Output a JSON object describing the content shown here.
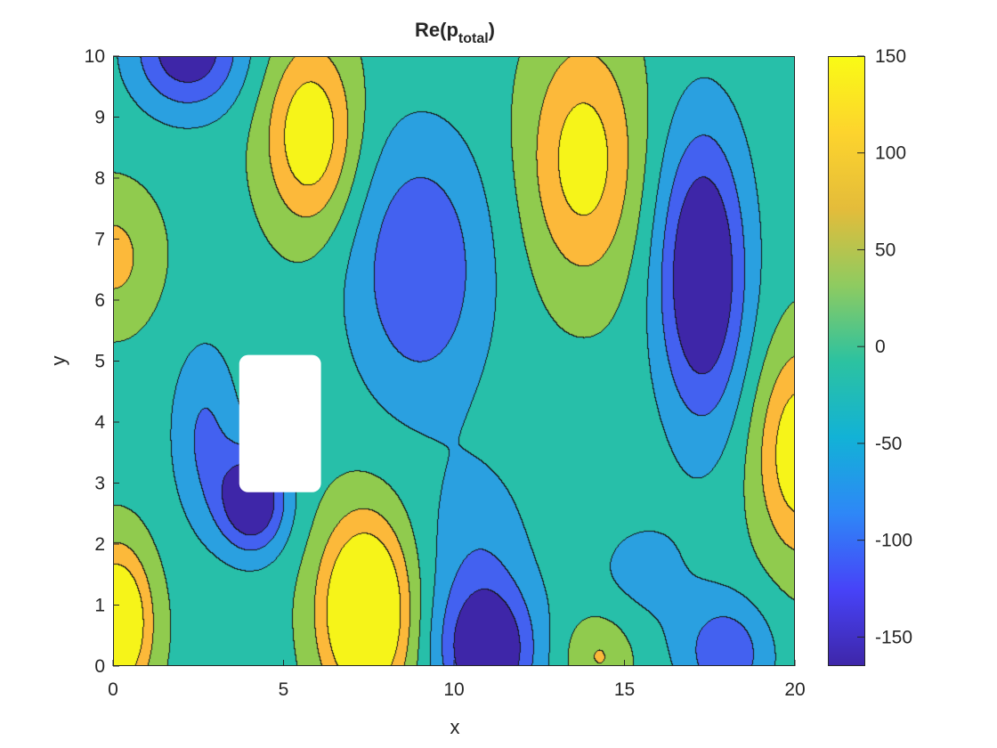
{
  "chart_data": {
    "type": "contour",
    "title_main": "Re(p",
    "title_sub": "total",
    "title_close": ")",
    "xlabel": "x",
    "ylabel": "y",
    "xlim": [
      0,
      20
    ],
    "ylim": [
      0,
      10
    ],
    "xticks": [
      "0",
      "5",
      "10",
      "15",
      "20"
    ],
    "yticks": [
      "0",
      "1",
      "2",
      "3",
      "4",
      "5",
      "6",
      "7",
      "8",
      "9",
      "10"
    ],
    "colorbar": {
      "clim": [
        -165,
        150
      ],
      "ticks": [
        "150",
        "100",
        "50",
        "0",
        "-50",
        "-100",
        "-150"
      ],
      "tick_values": [
        150,
        100,
        50,
        0,
        -50,
        -100,
        -150
      ],
      "colormap": [
        "#3e26a8",
        "#4743f8",
        "#2e87f7",
        "#12b2d6",
        "#2cc2a0",
        "#8fcb60",
        "#e4bc3a",
        "#fdd42d",
        "#f9fb15"
      ]
    },
    "level_colors": [
      "#3e26a8",
      "#4361f0",
      "#2aa0e0",
      "#27bfa9",
      "#90cb4e",
      "#fcb93a",
      "#f6f419"
    ],
    "levels": [
      -165,
      -120,
      -75,
      -30,
      15,
      60,
      105,
      150
    ],
    "obstacle": {
      "x_range": [
        3.7,
        6.1
      ],
      "y_range": [
        2.85,
        5.1
      ],
      "color": "#ffffff"
    },
    "field_sources": [
      {
        "x": 2.2,
        "y": 10.1,
        "amp": -160,
        "sx": 1.6,
        "sy": 1.0
      },
      {
        "x": 5.8,
        "y": 8.7,
        "amp": 150,
        "sx": 1.3,
        "sy": 1.5
      },
      {
        "x": 0.0,
        "y": 6.7,
        "amp": 75,
        "sx": 1.3,
        "sy": 1.1
      },
      {
        "x": 4.1,
        "y": 2.7,
        "amp": -180,
        "sx": 1.0,
        "sy": 0.85
      },
      {
        "x": 7.4,
        "y": 0.9,
        "amp": 220,
        "sx": 1.3,
        "sy": 1.5
      },
      {
        "x": 0.1,
        "y": 0.7,
        "amp": 200,
        "sx": 1.0,
        "sy": 1.2
      },
      {
        "x": 11.0,
        "y": 0.2,
        "amp": -170,
        "sx": 1.4,
        "sy": 1.1
      },
      {
        "x": 9.0,
        "y": 6.5,
        "amp": -120,
        "sx": 2.0,
        "sy": 2.2
      },
      {
        "x": 13.8,
        "y": 8.3,
        "amp": 130,
        "sx": 1.6,
        "sy": 2.0
      },
      {
        "x": 17.3,
        "y": 6.4,
        "amp": -190,
        "sx": 1.3,
        "sy": 2.4
      },
      {
        "x": 20.2,
        "y": 3.5,
        "amp": 150,
        "sx": 1.3,
        "sy": 1.7
      },
      {
        "x": 14.3,
        "y": 0.2,
        "amp": 70,
        "sx": 1.0,
        "sy": 0.7
      },
      {
        "x": 18.0,
        "y": 0.2,
        "amp": -110,
        "sx": 1.3,
        "sy": 0.9
      },
      {
        "x": 10.7,
        "y": 1.8,
        "amp": -60,
        "sx": 1.6,
        "sy": 1.6
      },
      {
        "x": 15.5,
        "y": 1.5,
        "amp": -40,
        "sx": 1.8,
        "sy": 1.2
      },
      {
        "x": 2.7,
        "y": 3.8,
        "amp": -80,
        "sx": 1.0,
        "sy": 1.5
      }
    ]
  }
}
